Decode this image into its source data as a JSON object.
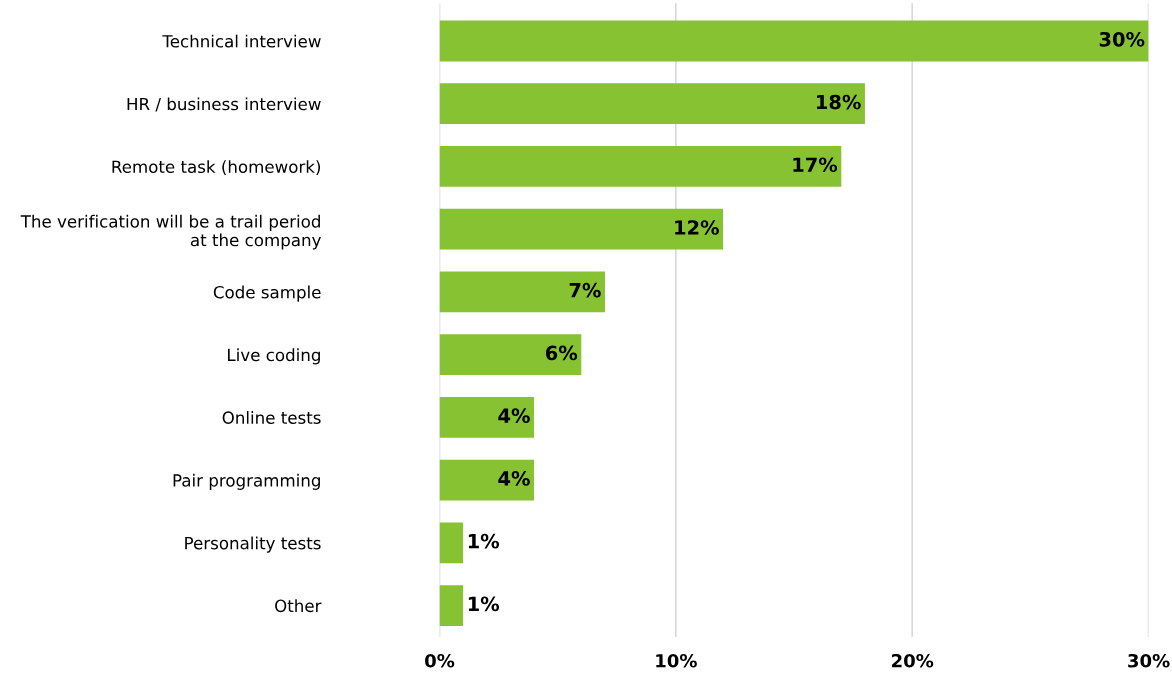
{
  "chart_data": {
    "type": "bar",
    "orientation": "horizontal",
    "categories": [
      "Technical interview",
      "HR / business interview",
      "Remote task (homework)",
      "The verification will be a trail period\nat the company",
      "Code sample",
      "Live coding",
      "Online tests",
      "Pair programming",
      "Personality tests",
      "Other"
    ],
    "values": [
      30,
      18,
      17,
      12,
      7,
      6,
      4,
      4,
      1,
      1
    ],
    "color": "#86c232",
    "value_labels": [
      "30%",
      "18%",
      "17%",
      "12%",
      "7%",
      "6%",
      "4%",
      "4%",
      "1%",
      "1%"
    ],
    "xlim": [
      0,
      30
    ],
    "xticks": [
      {
        "value": 0,
        "label": "0%"
      },
      {
        "value": 10,
        "label": "10%"
      },
      {
        "value": 20,
        "label": "20%"
      },
      {
        "value": 30,
        "label": "30%"
      }
    ],
    "grid": "x"
  }
}
